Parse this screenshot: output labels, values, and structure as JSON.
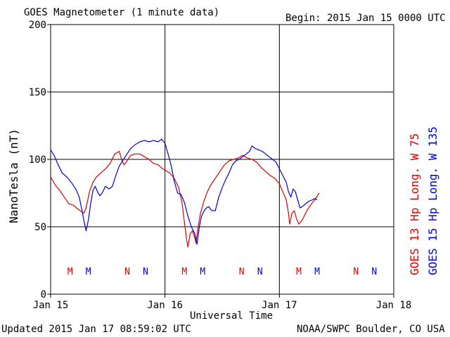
{
  "header": {
    "title": "GOES Magnetometer (1 minute data)",
    "begin": "Begin:  2015 Jan 15 0000 UTC"
  },
  "footer": {
    "updated": "Updated 2015 Jan 17 08:59:02 UTC",
    "source": "NOAA/SWPC Boulder, CO USA"
  },
  "colors": {
    "goes13": "#dd0000",
    "goes15": "#0000dd",
    "grid": "#000000"
  },
  "chart_data": {
    "type": "line",
    "ylabel": "NanoTesla (nT)",
    "xlabel": "Universal Time",
    "ylim": [
      0,
      200
    ],
    "xlim_days": [
      0,
      3
    ],
    "yticks": [
      0,
      50,
      100,
      150,
      200
    ],
    "xticks": [
      {
        "day": 0,
        "label": "Jan 15"
      },
      {
        "day": 1,
        "label": "Jan 16"
      },
      {
        "day": 2,
        "label": "Jan 17"
      },
      {
        "day": 3,
        "label": "Jan 18"
      }
    ],
    "grid": true,
    "series": [
      {
        "name": "GOES 13 Hp  Long. W 75",
        "color": "#dd0000",
        "points": [
          [
            0.0,
            87
          ],
          [
            0.04,
            81
          ],
          [
            0.08,
            77
          ],
          [
            0.12,
            72
          ],
          [
            0.16,
            67
          ],
          [
            0.2,
            66
          ],
          [
            0.24,
            63
          ],
          [
            0.29,
            60
          ],
          [
            0.31,
            64
          ],
          [
            0.34,
            76
          ],
          [
            0.37,
            83
          ],
          [
            0.4,
            87
          ],
          [
            0.44,
            90
          ],
          [
            0.48,
            93
          ],
          [
            0.52,
            97
          ],
          [
            0.56,
            104
          ],
          [
            0.6,
            106
          ],
          [
            0.62,
            100
          ],
          [
            0.64,
            96
          ],
          [
            0.66,
            98
          ],
          [
            0.7,
            103
          ],
          [
            0.74,
            104
          ],
          [
            0.78,
            104
          ],
          [
            0.82,
            102
          ],
          [
            0.86,
            100
          ],
          [
            0.9,
            97
          ],
          [
            0.94,
            96
          ],
          [
            0.98,
            93
          ],
          [
            1.0,
            92
          ],
          [
            1.04,
            90
          ],
          [
            1.08,
            86
          ],
          [
            1.12,
            79
          ],
          [
            1.15,
            67
          ],
          [
            1.17,
            53
          ],
          [
            1.19,
            40
          ],
          [
            1.2,
            35
          ],
          [
            1.22,
            45
          ],
          [
            1.24,
            47
          ],
          [
            1.26,
            42
          ],
          [
            1.27,
            38
          ],
          [
            1.29,
            50
          ],
          [
            1.31,
            60
          ],
          [
            1.34,
            69
          ],
          [
            1.37,
            76
          ],
          [
            1.4,
            81
          ],
          [
            1.44,
            86
          ],
          [
            1.48,
            91
          ],
          [
            1.52,
            96
          ],
          [
            1.56,
            99
          ],
          [
            1.6,
            100
          ],
          [
            1.64,
            101
          ],
          [
            1.68,
            103
          ],
          [
            1.72,
            101
          ],
          [
            1.76,
            100
          ],
          [
            1.8,
            98
          ],
          [
            1.84,
            94
          ],
          [
            1.88,
            91
          ],
          [
            1.92,
            88
          ],
          [
            1.96,
            86
          ],
          [
            2.0,
            82
          ],
          [
            2.03,
            76
          ],
          [
            2.06,
            70
          ],
          [
            2.08,
            60
          ],
          [
            2.09,
            52
          ],
          [
            2.11,
            60
          ],
          [
            2.13,
            62
          ],
          [
            2.15,
            56
          ],
          [
            2.17,
            52
          ],
          [
            2.2,
            55
          ],
          [
            2.24,
            62
          ],
          [
            2.28,
            67
          ],
          [
            2.31,
            70
          ],
          [
            2.34,
            74
          ],
          [
            2.35,
            75
          ]
        ]
      },
      {
        "name": "GOES 15 Hp  Long. W 135",
        "color": "#0000dd",
        "points": [
          [
            0.0,
            107
          ],
          [
            0.03,
            103
          ],
          [
            0.06,
            97
          ],
          [
            0.1,
            90
          ],
          [
            0.14,
            87
          ],
          [
            0.18,
            83
          ],
          [
            0.22,
            78
          ],
          [
            0.25,
            72
          ],
          [
            0.27,
            64
          ],
          [
            0.29,
            55
          ],
          [
            0.31,
            47
          ],
          [
            0.33,
            55
          ],
          [
            0.35,
            67
          ],
          [
            0.37,
            77
          ],
          [
            0.39,
            80
          ],
          [
            0.41,
            76
          ],
          [
            0.43,
            73
          ],
          [
            0.45,
            75
          ],
          [
            0.48,
            80
          ],
          [
            0.51,
            78
          ],
          [
            0.54,
            80
          ],
          [
            0.57,
            88
          ],
          [
            0.6,
            95
          ],
          [
            0.63,
            99
          ],
          [
            0.66,
            103
          ],
          [
            0.7,
            108
          ],
          [
            0.74,
            111
          ],
          [
            0.78,
            113
          ],
          [
            0.82,
            114
          ],
          [
            0.86,
            113
          ],
          [
            0.9,
            114
          ],
          [
            0.94,
            113
          ],
          [
            0.97,
            115
          ],
          [
            1.0,
            112
          ],
          [
            1.02,
            106
          ],
          [
            1.04,
            100
          ],
          [
            1.06,
            93
          ],
          [
            1.08,
            84
          ],
          [
            1.11,
            75
          ],
          [
            1.14,
            74
          ],
          [
            1.17,
            68
          ],
          [
            1.2,
            58
          ],
          [
            1.23,
            50
          ],
          [
            1.26,
            45
          ],
          [
            1.28,
            37
          ],
          [
            1.3,
            50
          ],
          [
            1.32,
            58
          ],
          [
            1.35,
            63
          ],
          [
            1.38,
            65
          ],
          [
            1.41,
            62
          ],
          [
            1.44,
            62
          ],
          [
            1.47,
            72
          ],
          [
            1.5,
            79
          ],
          [
            1.53,
            85
          ],
          [
            1.56,
            90
          ],
          [
            1.59,
            96
          ],
          [
            1.62,
            99
          ],
          [
            1.65,
            100
          ],
          [
            1.68,
            102
          ],
          [
            1.71,
            104
          ],
          [
            1.74,
            106
          ],
          [
            1.76,
            110
          ],
          [
            1.79,
            108
          ],
          [
            1.82,
            107
          ],
          [
            1.85,
            106
          ],
          [
            1.88,
            104
          ],
          [
            1.91,
            102
          ],
          [
            1.94,
            100
          ],
          [
            1.97,
            98
          ],
          [
            2.0,
            93
          ],
          [
            2.03,
            88
          ],
          [
            2.06,
            83
          ],
          [
            2.08,
            76
          ],
          [
            2.1,
            72
          ],
          [
            2.12,
            78
          ],
          [
            2.14,
            76
          ],
          [
            2.16,
            70
          ],
          [
            2.18,
            64
          ],
          [
            2.2,
            65
          ],
          [
            2.23,
            67
          ],
          [
            2.26,
            69
          ],
          [
            2.29,
            70
          ],
          [
            2.31,
            71
          ],
          [
            2.33,
            70
          ]
        ]
      }
    ],
    "markers": [
      {
        "day": 0.17,
        "label": "M",
        "color": "#dd0000"
      },
      {
        "day": 0.33,
        "label": "M",
        "color": "#0000dd"
      },
      {
        "day": 0.67,
        "label": "N",
        "color": "#dd0000"
      },
      {
        "day": 0.83,
        "label": "N",
        "color": "#0000dd"
      },
      {
        "day": 1.17,
        "label": "M",
        "color": "#dd0000"
      },
      {
        "day": 1.33,
        "label": "M",
        "color": "#0000dd"
      },
      {
        "day": 1.67,
        "label": "N",
        "color": "#dd0000"
      },
      {
        "day": 1.83,
        "label": "N",
        "color": "#0000dd"
      },
      {
        "day": 2.17,
        "label": "M",
        "color": "#dd0000"
      },
      {
        "day": 2.33,
        "label": "M",
        "color": "#0000dd"
      },
      {
        "day": 2.67,
        "label": "N",
        "color": "#dd0000"
      },
      {
        "day": 2.83,
        "label": "N",
        "color": "#0000dd"
      }
    ]
  }
}
